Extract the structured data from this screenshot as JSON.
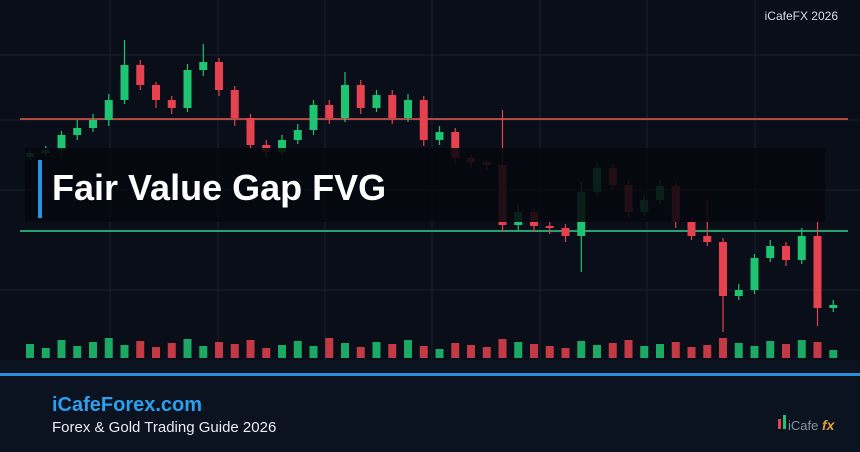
{
  "chart_data": {
    "type": "candlestick",
    "title": "Fair Value Gap FVG",
    "open": [
      183,
      187,
      190,
      205,
      212,
      220,
      240,
      275,
      255,
      240,
      232,
      270,
      278,
      250,
      222,
      195,
      188,
      200,
      210,
      235,
      222,
      255,
      232,
      245,
      222,
      240,
      200,
      208,
      182,
      178,
      175,
      115,
      128,
      114,
      112,
      104,
      148,
      172,
      155,
      128,
      140,
      154,
      118,
      104,
      98,
      44,
      50,
      82,
      94,
      80,
      104,
      32
    ],
    "high": [
      190,
      194,
      209,
      220,
      226,
      246,
      300,
      280,
      258,
      244,
      276,
      296,
      282,
      254,
      226,
      200,
      205,
      216,
      240,
      240,
      268,
      260,
      250,
      250,
      246,
      244,
      214,
      212,
      186,
      180,
      230,
      134,
      132,
      118,
      116,
      158,
      178,
      176,
      160,
      146,
      160,
      158,
      122,
      140,
      102,
      56,
      86,
      100,
      98,
      112,
      118,
      40
    ],
    "low": [
      180,
      184,
      186,
      200,
      208,
      214,
      236,
      250,
      232,
      226,
      228,
      264,
      244,
      214,
      190,
      182,
      185,
      196,
      205,
      216,
      218,
      226,
      228,
      216,
      218,
      194,
      195,
      176,
      172,
      170,
      108,
      110,
      108,
      106,
      98,
      68,
      144,
      150,
      122,
      124,
      136,
      112,
      100,
      94,
      8,
      40,
      46,
      78,
      74,
      76,
      14,
      28
    ],
    "close": [
      187,
      190,
      205,
      212,
      220,
      240,
      275,
      255,
      240,
      232,
      270,
      278,
      250,
      222,
      195,
      188,
      200,
      210,
      235,
      222,
      255,
      232,
      245,
      222,
      240,
      200,
      208,
      182,
      178,
      175,
      115,
      128,
      114,
      112,
      104,
      148,
      172,
      155,
      128,
      140,
      154,
      118,
      104,
      98,
      44,
      50,
      82,
      94,
      80,
      104,
      32,
      35
    ],
    "volume": [
      14,
      10,
      18,
      12,
      16,
      20,
      13,
      17,
      11,
      15,
      19,
      12,
      16,
      14,
      18,
      10,
      13,
      17,
      12,
      20,
      15,
      11,
      16,
      14,
      18,
      12,
      9,
      15,
      13,
      11,
      19,
      16,
      14,
      12,
      10,
      17,
      13,
      15,
      18,
      12,
      14,
      16,
      11,
      13,
      20,
      15,
      12,
      17,
      14,
      18,
      16,
      8
    ],
    "ylim": [
      0,
      300
    ],
    "volume_lim": [
      0,
      25
    ],
    "up_color": "#1fc472",
    "down_color": "#e5414f",
    "levels": [
      {
        "value": 221,
        "color": "#e8574e"
      },
      {
        "value": 109,
        "color": "#2ed38a"
      }
    ]
  },
  "watermark": "iCafeFX 2026",
  "footer": {
    "site": "iCafeForex.com",
    "tagline": "Forex & Gold Trading Guide 2026"
  },
  "logo": {
    "text": "iCafe",
    "accent": "fx"
  }
}
